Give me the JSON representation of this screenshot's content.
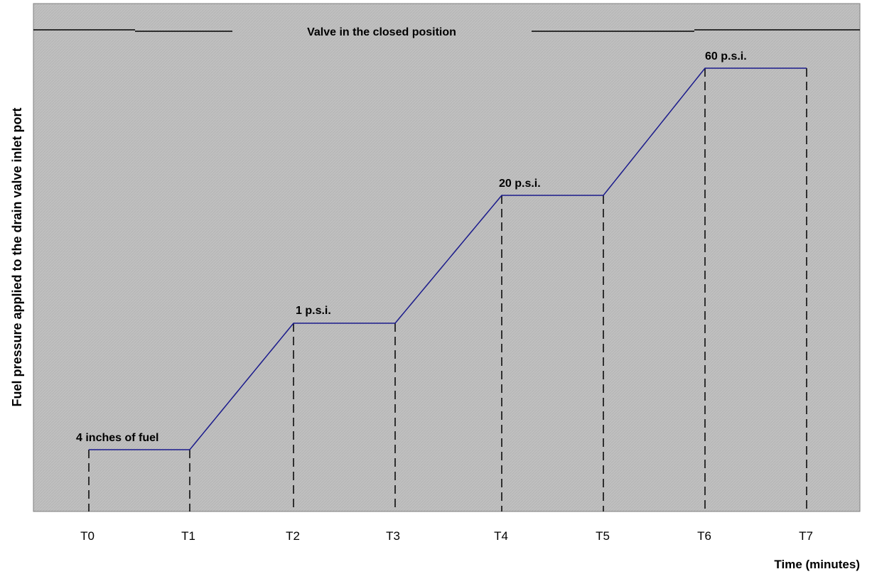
{
  "chart_data": {
    "type": "line",
    "title": "",
    "xlabel": "Time (minutes)",
    "ylabel": "Fuel pressure applied to the drain valve inlet port",
    "categories": [
      "T0",
      "T1",
      "T2",
      "T3",
      "T4",
      "T5",
      "T6",
      "T7"
    ],
    "series": [
      {
        "values": [
          "4 inches of fuel",
          "4 inches of fuel",
          "1 p.s.i.",
          "1 p.s.i.",
          "20 p.s.i.",
          "20 p.s.i.",
          "60 p.s.i.",
          "60 p.s.i."
        ]
      }
    ],
    "annotations": {
      "valve_state": "Valve in the closed position",
      "step_labels": [
        "4 inches of fuel",
        "1 p.s.i.",
        "20 p.s.i.",
        "60 p.s.i."
      ]
    },
    "grid": false
  },
  "colors": {
    "plot_background": "#c0c0c0",
    "line": "#1a1a8c",
    "dashed": "#000000",
    "frame": "#808080"
  }
}
